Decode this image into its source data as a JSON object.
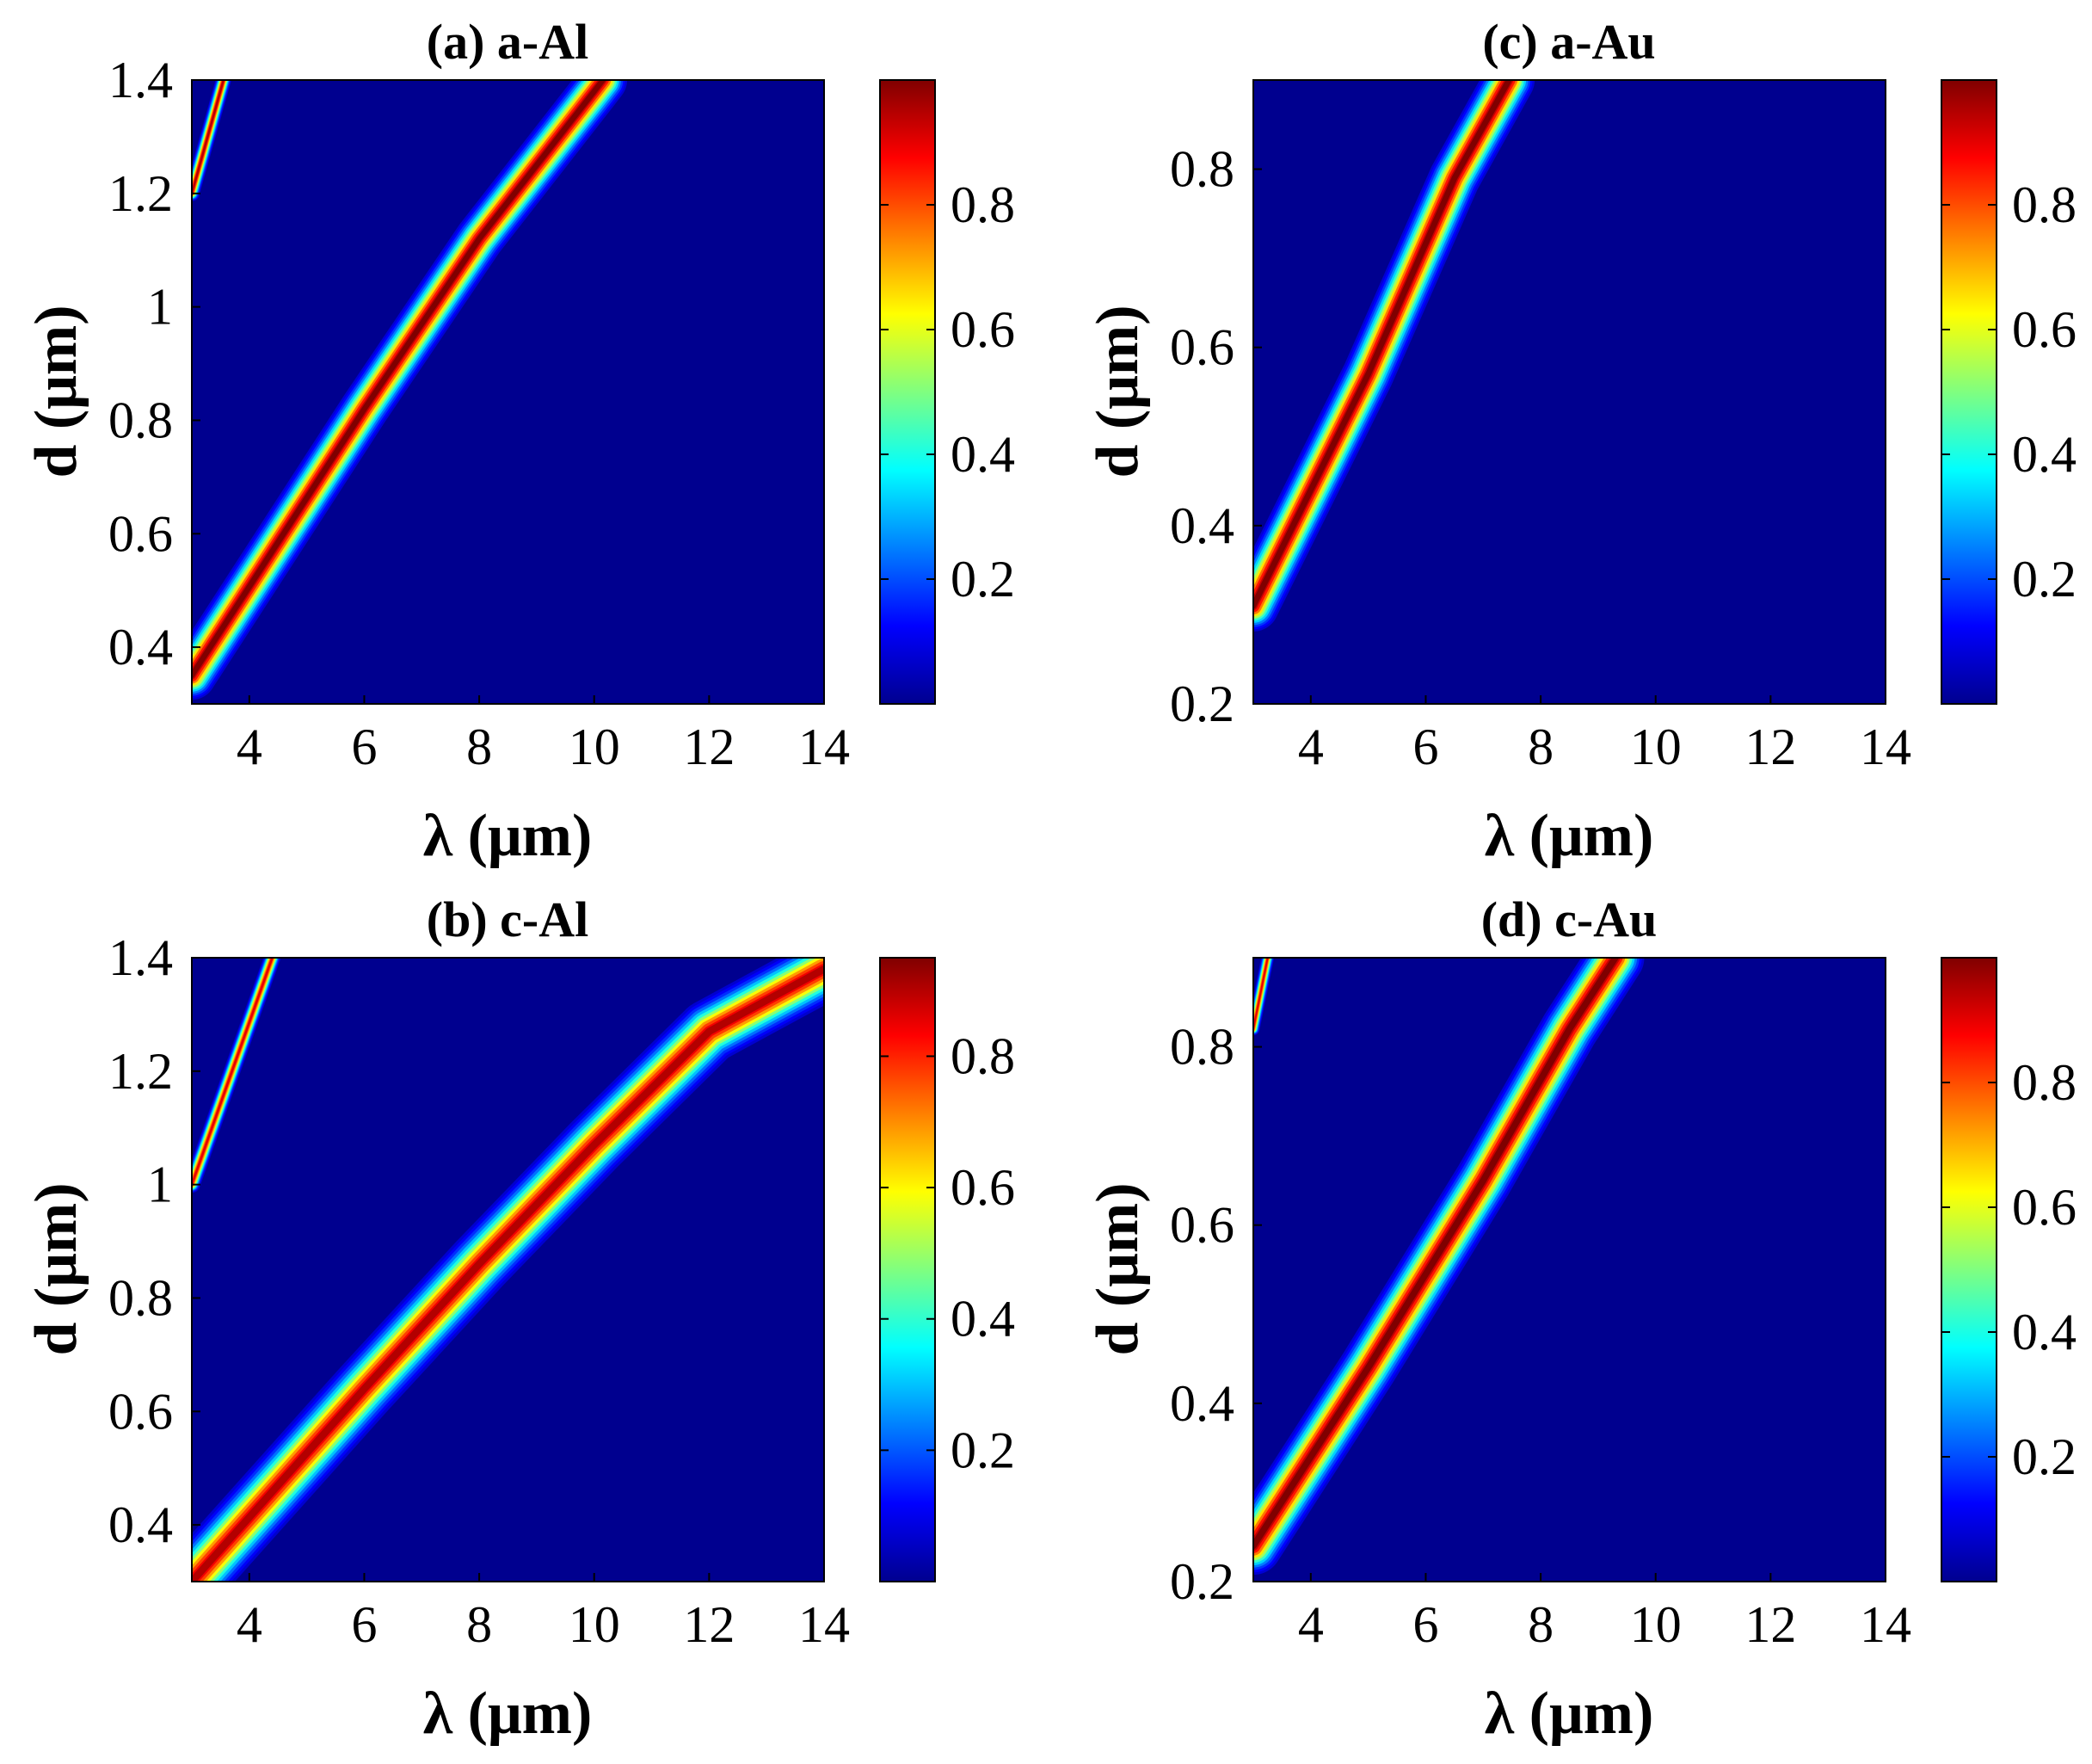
{
  "chart_data": [
    {
      "type": "heatmap",
      "title": "(a) a-Al",
      "xlabel": "λ (μm)",
      "ylabel": "d (μm)",
      "xlim": [
        3,
        14
      ],
      "ylim": [
        0.3,
        1.4
      ],
      "xticks": [
        "4",
        "6",
        "8",
        "10",
        "12",
        "14"
      ],
      "xtick_values": [
        4,
        6,
        8,
        10,
        12,
        14
      ],
      "yticks": [
        "0.4",
        "0.6",
        "0.8",
        "1",
        "1.2",
        "1.4"
      ],
      "ytick_values": [
        0.4,
        0.6,
        0.8,
        1.0,
        1.2,
        1.4
      ],
      "colorbar": {
        "ticks": [
          "0.2",
          "0.4",
          "0.6",
          "0.8"
        ],
        "tick_values": [
          0.2,
          0.4,
          0.6,
          0.8
        ],
        "range": [
          0,
          1
        ],
        "colormap": "jet"
      },
      "bands": [
        {
          "label": "primary",
          "points": [
            [
              3.0,
              0.35
            ],
            [
              6.0,
              0.82
            ],
            [
              8.0,
              1.12
            ],
            [
              10.0,
              1.38
            ],
            [
              10.15,
              1.4
            ]
          ],
          "width": 0.38,
          "peak": 1.0
        },
        {
          "label": "secondary",
          "points": [
            [
              3.0,
              1.2
            ],
            [
              3.55,
              1.4
            ]
          ],
          "width": 0.12,
          "peak": 0.95
        }
      ]
    },
    {
      "type": "heatmap",
      "title": "(b) c-Al",
      "xlabel": "λ (μm)",
      "ylabel": "d (μm)",
      "xlim": [
        3,
        14
      ],
      "ylim": [
        0.3,
        1.4
      ],
      "xticks": [
        "4",
        "6",
        "8",
        "10",
        "12",
        "14"
      ],
      "xtick_values": [
        4,
        6,
        8,
        10,
        12,
        14
      ],
      "yticks": [
        "0.4",
        "0.6",
        "0.8",
        "1",
        "1.2",
        "1.4"
      ],
      "ytick_values": [
        0.4,
        0.6,
        0.8,
        1.0,
        1.2,
        1.4
      ],
      "colorbar": {
        "ticks": [
          "0.2",
          "0.4",
          "0.6",
          "0.8"
        ],
        "tick_values": [
          0.2,
          0.4,
          0.6,
          0.8
        ],
        "range": [
          0,
          0.95
        ],
        "colormap": "jet"
      },
      "bands": [
        {
          "label": "primary",
          "points": [
            [
              3.0,
              0.3
            ],
            [
              6.0,
              0.64
            ],
            [
              8.0,
              0.86
            ],
            [
              10.0,
              1.07
            ],
            [
              12.0,
              1.27
            ],
            [
              14.0,
              1.38
            ]
          ],
          "width": 0.5,
          "peak": 0.95
        },
        {
          "label": "secondary",
          "points": [
            [
              3.0,
              1.0
            ],
            [
              4.4,
              1.4
            ]
          ],
          "width": 0.13,
          "peak": 0.9
        }
      ]
    },
    {
      "type": "heatmap",
      "title": "(c) a-Au",
      "xlabel": "λ (μm)",
      "ylabel": "d (μm)",
      "xlim": [
        3,
        14
      ],
      "ylim": [
        0.2,
        0.9
      ],
      "xticks": [
        "4",
        "6",
        "8",
        "10",
        "12",
        "14"
      ],
      "xtick_values": [
        4,
        6,
        8,
        10,
        12,
        14
      ],
      "yticks": [
        "0.2",
        "0.4",
        "0.6",
        "0.8"
      ],
      "ytick_values": [
        0.2,
        0.4,
        0.6,
        0.8
      ],
      "colorbar": {
        "ticks": [
          "0.2",
          "0.4",
          "0.6",
          "0.8"
        ],
        "tick_values": [
          0.2,
          0.4,
          0.6,
          0.8
        ],
        "range": [
          0,
          1
        ],
        "colormap": "jet"
      },
      "bands": [
        {
          "label": "primary",
          "points": [
            [
              3.0,
              0.31
            ],
            [
              5.0,
              0.57
            ],
            [
              6.5,
              0.79
            ],
            [
              7.45,
              0.9
            ]
          ],
          "width": 0.4,
          "peak": 1.0
        }
      ]
    },
    {
      "type": "heatmap",
      "title": "(d) c-Au",
      "xlabel": "λ (μm)",
      "ylabel": "d (μm)",
      "xlim": [
        3,
        14
      ],
      "ylim": [
        0.2,
        0.9
      ],
      "xticks": [
        "4",
        "6",
        "8",
        "10",
        "12",
        "14"
      ],
      "xtick_values": [
        4,
        6,
        8,
        10,
        12,
        14
      ],
      "yticks": [
        "0.2",
        "0.4",
        "0.6",
        "0.8"
      ],
      "ytick_values": [
        0.2,
        0.4,
        0.6,
        0.8
      ],
      "colorbar": {
        "ticks": [
          "0.2",
          "0.4",
          "0.6",
          "0.8"
        ],
        "tick_values": [
          0.2,
          0.4,
          0.6,
          0.8
        ],
        "range": [
          0,
          1
        ],
        "colormap": "jet"
      },
      "bands": [
        {
          "label": "primary",
          "points": [
            [
              3.0,
              0.24
            ],
            [
              5.0,
              0.44
            ],
            [
              7.0,
              0.65
            ],
            [
              8.5,
              0.82
            ],
            [
              9.3,
              0.9
            ]
          ],
          "width": 0.45,
          "peak": 1.0
        },
        {
          "label": "secondary",
          "points": [
            [
              3.0,
              0.82
            ],
            [
              3.25,
              0.9
            ]
          ],
          "width": 0.1,
          "peak": 0.9
        }
      ]
    }
  ]
}
